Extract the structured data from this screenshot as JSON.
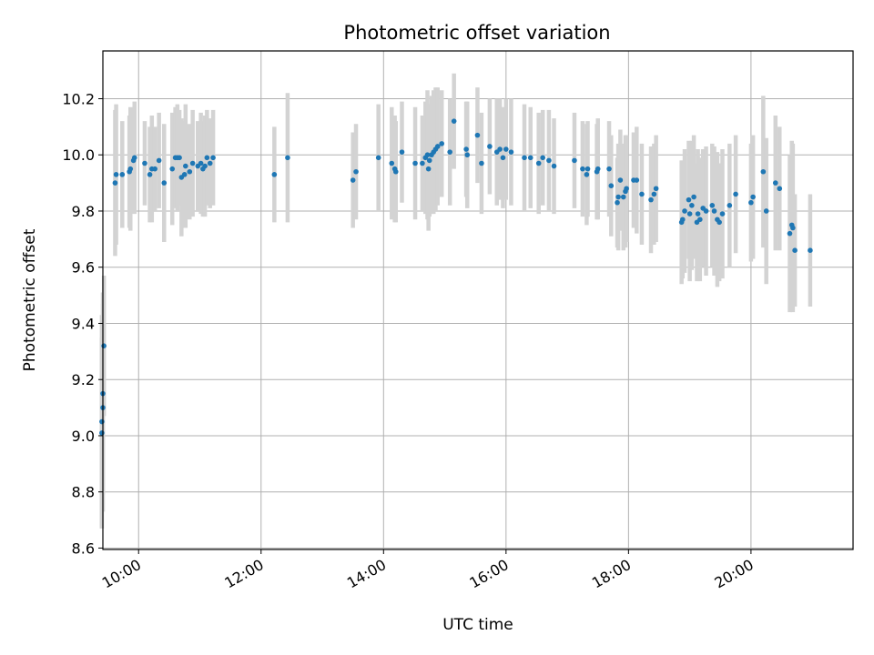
{
  "chart_data": {
    "type": "scatter",
    "title": "Photometric offset variation",
    "xlabel": "UTC time",
    "ylabel": "Photometric offset",
    "x_unit": "time of day (HH:MM)",
    "xlim": [
      "09:25",
      "21:40"
    ],
    "ylim": [
      8.595,
      10.37
    ],
    "xticks": [
      "10:00",
      "12:00",
      "14:00",
      "16:00",
      "18:00",
      "20:00"
    ],
    "yticks": [
      8.6,
      8.8,
      9.0,
      9.2,
      9.4,
      9.6,
      9.8,
      10.0,
      10.2
    ],
    "grid": true,
    "legend": null,
    "colors": {
      "point": "#1f77b4",
      "errorbar": "#d3d3d3",
      "grid": "#b0b0b0"
    },
    "points": [
      {
        "x": "09:24",
        "y": 9.01,
        "err": 0.34
      },
      {
        "x": "09:24",
        "y": 9.05,
        "err": 0.38
      },
      {
        "x": "09:25",
        "y": 9.1,
        "err": 0.37
      },
      {
        "x": "09:25",
        "y": 9.15,
        "err": 0.36
      },
      {
        "x": "09:26",
        "y": 9.32,
        "err": 0.25
      },
      {
        "x": "09:37",
        "y": 9.9,
        "err": 0.26
      },
      {
        "x": "09:38",
        "y": 9.93,
        "err": 0.25
      },
      {
        "x": "09:44",
        "y": 9.93,
        "err": 0.19
      },
      {
        "x": "09:51",
        "y": 9.94,
        "err": 0.2
      },
      {
        "x": "09:52",
        "y": 9.95,
        "err": 0.22
      },
      {
        "x": "09:55",
        "y": 9.98,
        "err": 0.18
      },
      {
        "x": "09:56",
        "y": 9.99,
        "err": 0.2
      },
      {
        "x": "10:06",
        "y": 9.97,
        "err": 0.15
      },
      {
        "x": "10:11",
        "y": 9.93,
        "err": 0.17
      },
      {
        "x": "10:13",
        "y": 9.95,
        "err": 0.19
      },
      {
        "x": "10:16",
        "y": 9.95,
        "err": 0.15
      },
      {
        "x": "10:20",
        "y": 9.98,
        "err": 0.17
      },
      {
        "x": "10:25",
        "y": 9.9,
        "err": 0.21
      },
      {
        "x": "10:33",
        "y": 9.95,
        "err": 0.2
      },
      {
        "x": "10:36",
        "y": 9.99,
        "err": 0.18
      },
      {
        "x": "10:38",
        "y": 9.99,
        "err": 0.19
      },
      {
        "x": "10:40",
        "y": 9.99,
        "err": 0.17
      },
      {
        "x": "10:42",
        "y": 9.92,
        "err": 0.21
      },
      {
        "x": "10:45",
        "y": 9.93,
        "err": 0.19
      },
      {
        "x": "10:46",
        "y": 9.96,
        "err": 0.22
      },
      {
        "x": "10:50",
        "y": 9.94,
        "err": 0.17
      },
      {
        "x": "10:53",
        "y": 9.97,
        "err": 0.19
      },
      {
        "x": "10:58",
        "y": 9.96,
        "err": 0.16
      },
      {
        "x": "11:01",
        "y": 9.97,
        "err": 0.18
      },
      {
        "x": "11:03",
        "y": 9.95,
        "err": 0.17
      },
      {
        "x": "11:05",
        "y": 9.96,
        "err": 0.18
      },
      {
        "x": "11:07",
        "y": 9.99,
        "err": 0.17
      },
      {
        "x": "11:10",
        "y": 9.97,
        "err": 0.16
      },
      {
        "x": "11:13",
        "y": 9.99,
        "err": 0.17
      },
      {
        "x": "12:13",
        "y": 9.93,
        "err": 0.17
      },
      {
        "x": "12:26",
        "y": 9.99,
        "err": 0.23
      },
      {
        "x": "13:30",
        "y": 9.91,
        "err": 0.17
      },
      {
        "x": "13:33",
        "y": 9.94,
        "err": 0.17
      },
      {
        "x": "13:55",
        "y": 9.99,
        "err": 0.19
      },
      {
        "x": "14:08",
        "y": 9.97,
        "err": 0.2
      },
      {
        "x": "14:11",
        "y": 9.95,
        "err": 0.19
      },
      {
        "x": "14:12",
        "y": 9.94,
        "err": 0.18
      },
      {
        "x": "14:18",
        "y": 10.01,
        "err": 0.18
      },
      {
        "x": "14:31",
        "y": 9.97,
        "err": 0.2
      },
      {
        "x": "14:38",
        "y": 9.97,
        "err": 0.17
      },
      {
        "x": "14:41",
        "y": 9.99,
        "err": 0.2
      },
      {
        "x": "14:43",
        "y": 10.0,
        "err": 0.23
      },
      {
        "x": "14:44",
        "y": 9.95,
        "err": 0.22
      },
      {
        "x": "14:45",
        "y": 9.98,
        "err": 0.2
      },
      {
        "x": "14:47",
        "y": 10.0,
        "err": 0.21
      },
      {
        "x": "14:49",
        "y": 10.01,
        "err": 0.22
      },
      {
        "x": "14:51",
        "y": 10.02,
        "err": 0.22
      },
      {
        "x": "14:53",
        "y": 10.03,
        "err": 0.21
      },
      {
        "x": "14:57",
        "y": 10.04,
        "err": 0.19
      },
      {
        "x": "15:05",
        "y": 10.01,
        "err": 0.19
      },
      {
        "x": "15:09",
        "y": 10.12,
        "err": 0.17
      },
      {
        "x": "15:21",
        "y": 10.02,
        "err": 0.17
      },
      {
        "x": "15:22",
        "y": 10.0,
        "err": 0.19
      },
      {
        "x": "15:32",
        "y": 10.07,
        "err": 0.17
      },
      {
        "x": "15:36",
        "y": 9.97,
        "err": 0.18
      },
      {
        "x": "15:44",
        "y": 10.03,
        "err": 0.17
      },
      {
        "x": "15:51",
        "y": 10.01,
        "err": 0.19
      },
      {
        "x": "15:54",
        "y": 10.02,
        "err": 0.18
      },
      {
        "x": "15:57",
        "y": 9.99,
        "err": 0.18
      },
      {
        "x": "16:00",
        "y": 10.02,
        "err": 0.18
      },
      {
        "x": "16:05",
        "y": 10.01,
        "err": 0.19
      },
      {
        "x": "16:18",
        "y": 9.99,
        "err": 0.19
      },
      {
        "x": "16:24",
        "y": 9.99,
        "err": 0.18
      },
      {
        "x": "16:32",
        "y": 9.97,
        "err": 0.18
      },
      {
        "x": "16:36",
        "y": 9.99,
        "err": 0.17
      },
      {
        "x": "16:42",
        "y": 9.98,
        "err": 0.18
      },
      {
        "x": "16:47",
        "y": 9.96,
        "err": 0.17
      },
      {
        "x": "17:07",
        "y": 9.98,
        "err": 0.17
      },
      {
        "x": "17:15",
        "y": 9.95,
        "err": 0.17
      },
      {
        "x": "17:19",
        "y": 9.93,
        "err": 0.18
      },
      {
        "x": "17:20",
        "y": 9.95,
        "err": 0.17
      },
      {
        "x": "17:29",
        "y": 9.94,
        "err": 0.17
      },
      {
        "x": "17:30",
        "y": 9.95,
        "err": 0.18
      },
      {
        "x": "17:41",
        "y": 9.95,
        "err": 0.17
      },
      {
        "x": "17:43",
        "y": 9.89,
        "err": 0.18
      },
      {
        "x": "17:49",
        "y": 9.83,
        "err": 0.16
      },
      {
        "x": "17:50",
        "y": 9.85,
        "err": 0.19
      },
      {
        "x": "17:52",
        "y": 9.91,
        "err": 0.18
      },
      {
        "x": "17:55",
        "y": 9.85,
        "err": 0.19
      },
      {
        "x": "17:57",
        "y": 9.87,
        "err": 0.2
      },
      {
        "x": "17:58",
        "y": 9.88,
        "err": 0.19
      },
      {
        "x": "18:05",
        "y": 9.91,
        "err": 0.17
      },
      {
        "x": "18:08",
        "y": 9.91,
        "err": 0.19
      },
      {
        "x": "18:13",
        "y": 9.86,
        "err": 0.18
      },
      {
        "x": "18:22",
        "y": 9.84,
        "err": 0.19
      },
      {
        "x": "18:25",
        "y": 9.86,
        "err": 0.18
      },
      {
        "x": "18:27",
        "y": 9.88,
        "err": 0.19
      },
      {
        "x": "18:52",
        "y": 9.76,
        "err": 0.22
      },
      {
        "x": "18:53",
        "y": 9.77,
        "err": 0.21
      },
      {
        "x": "18:55",
        "y": 9.8,
        "err": 0.22
      },
      {
        "x": "18:59",
        "y": 9.84,
        "err": 0.21
      },
      {
        "x": "19:00",
        "y": 9.79,
        "err": 0.24
      },
      {
        "x": "19:02",
        "y": 9.82,
        "err": 0.23
      },
      {
        "x": "19:04",
        "y": 9.85,
        "err": 0.22
      },
      {
        "x": "19:07",
        "y": 9.76,
        "err": 0.21
      },
      {
        "x": "19:08",
        "y": 9.79,
        "err": 0.23
      },
      {
        "x": "19:10",
        "y": 9.77,
        "err": 0.22
      },
      {
        "x": "19:13",
        "y": 9.81,
        "err": 0.21
      },
      {
        "x": "19:16",
        "y": 9.8,
        "err": 0.23
      },
      {
        "x": "19:22",
        "y": 9.82,
        "err": 0.22
      },
      {
        "x": "19:24",
        "y": 9.8,
        "err": 0.23
      },
      {
        "x": "19:27",
        "y": 9.77,
        "err": 0.24
      },
      {
        "x": "19:29",
        "y": 9.76,
        "err": 0.21
      },
      {
        "x": "19:32",
        "y": 9.79,
        "err": 0.23
      },
      {
        "x": "19:39",
        "y": 9.82,
        "err": 0.22
      },
      {
        "x": "19:45",
        "y": 9.86,
        "err": 0.21
      },
      {
        "x": "20:00",
        "y": 9.83,
        "err": 0.21
      },
      {
        "x": "20:02",
        "y": 9.85,
        "err": 0.22
      },
      {
        "x": "20:12",
        "y": 9.94,
        "err": 0.27
      },
      {
        "x": "20:15",
        "y": 9.8,
        "err": 0.26
      },
      {
        "x": "20:24",
        "y": 9.9,
        "err": 0.24
      },
      {
        "x": "20:28",
        "y": 9.88,
        "err": 0.22
      },
      {
        "x": "20:38",
        "y": 9.72,
        "err": 0.28
      },
      {
        "x": "20:40",
        "y": 9.75,
        "err": 0.3
      },
      {
        "x": "20:41",
        "y": 9.74,
        "err": 0.3
      },
      {
        "x": "20:43",
        "y": 9.66,
        "err": 0.2
      },
      {
        "x": "20:58",
        "y": 9.66,
        "err": 0.2
      }
    ]
  }
}
